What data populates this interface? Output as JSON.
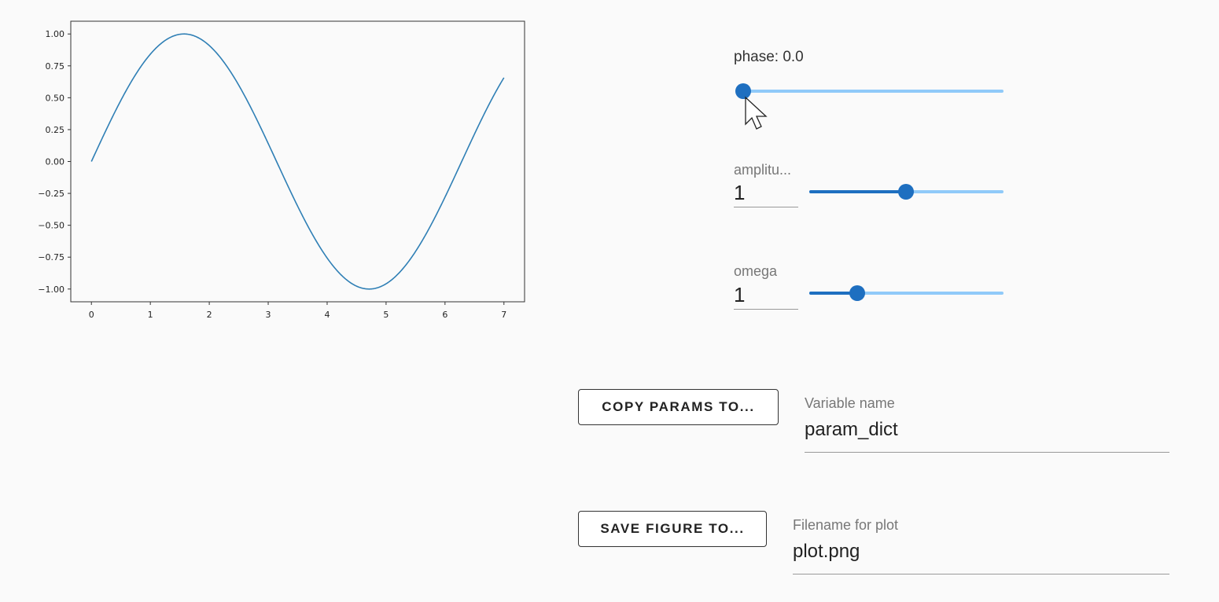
{
  "chart_data": {
    "type": "line",
    "function": "sin",
    "x": [
      0,
      0.25,
      0.5,
      0.75,
      1,
      1.25,
      1.5,
      1.75,
      2,
      2.25,
      2.5,
      2.75,
      3,
      3.25,
      3.5,
      3.75,
      4,
      4.25,
      4.5,
      4.75,
      5,
      5.25,
      5.5,
      5.75,
      6,
      6.25,
      6.5,
      6.75,
      7
    ],
    "y": [
      0,
      0.247,
      0.479,
      0.682,
      0.841,
      0.949,
      0.997,
      0.984,
      0.909,
      0.778,
      0.598,
      0.382,
      0.141,
      -0.108,
      -0.351,
      -0.572,
      -0.757,
      -0.895,
      -0.978,
      -0.999,
      -0.959,
      -0.859,
      -0.706,
      -0.508,
      -0.279,
      -0.033,
      0.215,
      0.451,
      0.657
    ],
    "xlim": [
      -0.35,
      7.35
    ],
    "ylim": [
      -1.1,
      1.1
    ],
    "xticks": [
      "0",
      "1",
      "2",
      "3",
      "4",
      "5",
      "6",
      "7"
    ],
    "yticks": [
      "1.00",
      "0.75",
      "0.50",
      "0.25",
      "0.00",
      "−0.25",
      "−0.50",
      "−0.75",
      "−1.00"
    ],
    "line_color": "#2f7fb5",
    "grid": false
  },
  "controls": {
    "phase": {
      "label": "phase: 0.0",
      "value": 0.0,
      "fraction": 0.0
    },
    "amplitude": {
      "label": "amplitu...",
      "value": "1",
      "fraction": 0.5
    },
    "omega": {
      "label": "omega",
      "value": "1",
      "fraction": 0.25
    }
  },
  "actions": {
    "copy_button": "COPY PARAMS TO...",
    "variable_label": "Variable name",
    "variable_value": "param_dict",
    "save_button": "SAVE FIGURE TO...",
    "filename_label": "Filename for plot",
    "filename_value": "plot.png"
  },
  "colors": {
    "accent": "#1e6fc0",
    "track": "#90caf9"
  }
}
